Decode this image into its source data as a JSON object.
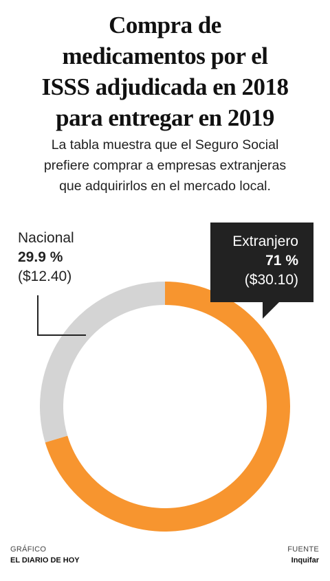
{
  "title_lines": [
    "Compra de",
    "medicamentos por el",
    "ISSS adjudicada en 2018",
    "para entregar en 2019"
  ],
  "subtitle_lines": [
    "La tabla muestra que el Seguro Social",
    "prefiere comprar a empresas extranjeras",
    "que adquirirlos en el mercado local."
  ],
  "chart_data": {
    "type": "pie",
    "donut": true,
    "slices": [
      {
        "name": "Extranjero",
        "value": 71,
        "value_label": "71 %",
        "amount": "($30.10)",
        "color": "#F7952F"
      },
      {
        "name": "Nacional",
        "value": 29.9,
        "value_label": "29.9 %",
        "amount": "($12.40)",
        "color": "#D4D4D4"
      }
    ]
  },
  "footer": {
    "credit_label": "GRÁFICO",
    "credit_value": "EL DIARIO DE HOY",
    "source_label": "FUENTE",
    "source_value": "Inquifar"
  }
}
